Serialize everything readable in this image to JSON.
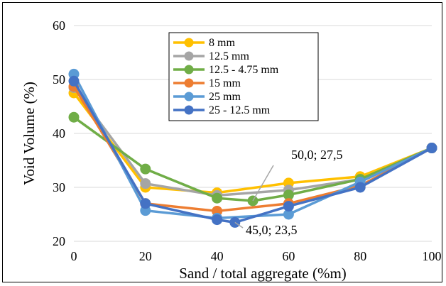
{
  "chart_data": {
    "type": "line",
    "xlabel": "Sand / total aggregate (%m)",
    "ylabel": "Void Volume (%)",
    "xlim": [
      0,
      100
    ],
    "ylim": [
      20,
      60
    ],
    "xticks": [
      0,
      20,
      40,
      60,
      80,
      100
    ],
    "yticks": [
      20,
      30,
      40,
      50,
      60
    ],
    "grid": "horizontal",
    "legend_position": "top-center",
    "series": [
      {
        "name": "8 mm",
        "color": "#FFC000",
        "points": [
          [
            0,
            47.5
          ],
          [
            20,
            30.0
          ],
          [
            40,
            29.0
          ],
          [
            60,
            30.8
          ],
          [
            80,
            32.0
          ],
          [
            100,
            37.3
          ]
        ]
      },
      {
        "name": "12.5 mm",
        "color": "#A5A5A5",
        "points": [
          [
            0,
            48.5
          ],
          [
            20,
            30.7
          ],
          [
            40,
            28.5
          ],
          [
            60,
            29.5
          ],
          [
            80,
            31.5
          ],
          [
            100,
            37.3
          ]
        ]
      },
      {
        "name": "12.5 - 4.75 mm",
        "color": "#70AD47",
        "points": [
          [
            0,
            43.0
          ],
          [
            20,
            33.4
          ],
          [
            40,
            28.0
          ],
          [
            50,
            27.5
          ],
          [
            60,
            28.6
          ],
          [
            80,
            31.5
          ],
          [
            100,
            37.3
          ]
        ]
      },
      {
        "name": "15 mm",
        "color": "#ED7D31",
        "points": [
          [
            0,
            48.7
          ],
          [
            20,
            27.0
          ],
          [
            40,
            25.6
          ],
          [
            60,
            27.0
          ],
          [
            80,
            30.3
          ],
          [
            100,
            37.3
          ]
        ]
      },
      {
        "name": "25 mm",
        "color": "#5B9BD5",
        "points": [
          [
            0,
            51.0
          ],
          [
            20,
            25.7
          ],
          [
            40,
            24.3
          ],
          [
            60,
            25.0
          ],
          [
            80,
            31.0
          ],
          [
            100,
            37.3
          ]
        ]
      },
      {
        "name": "25 - 12.5 mm",
        "color": "#4472C4",
        "points": [
          [
            0,
            49.7
          ],
          [
            20,
            27.0
          ],
          [
            40,
            24.0
          ],
          [
            45,
            23.5
          ],
          [
            60,
            26.5
          ],
          [
            80,
            30.0
          ],
          [
            100,
            37.3
          ]
        ]
      }
    ],
    "annotations": [
      {
        "text": "50,0; 27,5",
        "x": 50,
        "y": 27.5
      },
      {
        "text": "45,0; 23,5",
        "x": 45,
        "y": 23.5
      }
    ]
  }
}
